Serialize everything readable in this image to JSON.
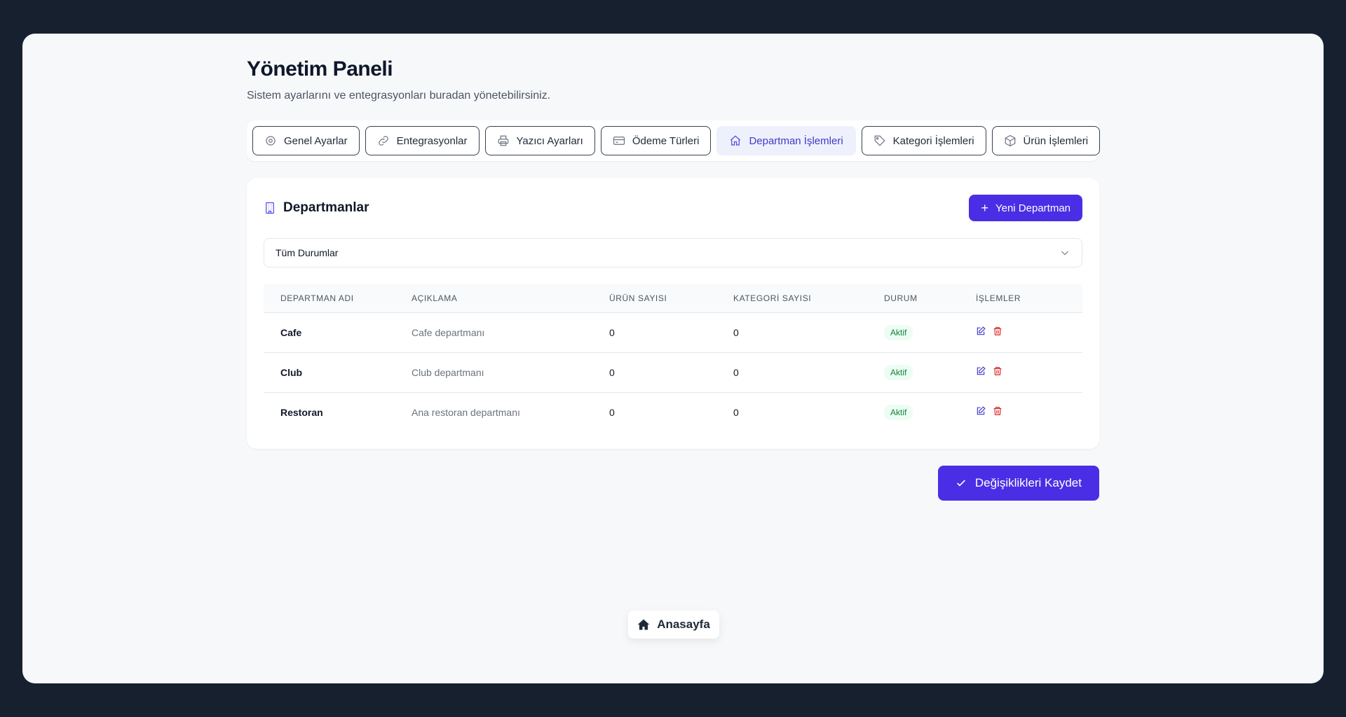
{
  "page": {
    "title": "Yönetim Paneli",
    "subtitle": "Sistem ayarlarını ve entegrasyonları buradan yönetebilirsiniz."
  },
  "tabs": [
    {
      "label": "Genel Ayarlar",
      "icon": "gear-icon"
    },
    {
      "label": "Entegrasyonlar",
      "icon": "link-icon"
    },
    {
      "label": "Yazıcı Ayarları",
      "icon": "printer-icon"
    },
    {
      "label": "Ödeme Türleri",
      "icon": "credit-card-icon"
    },
    {
      "label": "Departman İşlemleri",
      "icon": "home-icon",
      "active": true
    },
    {
      "label": "Kategori İşlemleri",
      "icon": "tag-icon"
    },
    {
      "label": "Ürün İşlemleri",
      "icon": "box-icon"
    }
  ],
  "departments": {
    "title": "Departmanlar",
    "new_button_label": "Yeni Departman",
    "filter": {
      "selected": "Tüm Durumlar"
    },
    "columns": [
      "DEPARTMAN ADI",
      "AÇIKLAMA",
      "ÜRÜN SAYISI",
      "KATEGORİ SAYISI",
      "DURUM",
      "İŞLEMLER"
    ],
    "rows": [
      {
        "name": "Cafe",
        "description": "Cafe departmanı",
        "product_count": "0",
        "category_count": "0",
        "status": "Aktif"
      },
      {
        "name": "Club",
        "description": "Club departmanı",
        "product_count": "0",
        "category_count": "0",
        "status": "Aktif"
      },
      {
        "name": "Restoran",
        "description": "Ana restoran departmanı",
        "product_count": "0",
        "category_count": "0",
        "status": "Aktif"
      }
    ]
  },
  "save_button_label": "Değişiklikleri Kaydet",
  "home_button_label": "Anasayfa",
  "colors": {
    "accent": "#4a2ee6",
    "active_tab_bg": "#eef0fc",
    "status_active": "#15803d",
    "danger": "#dc2626"
  }
}
